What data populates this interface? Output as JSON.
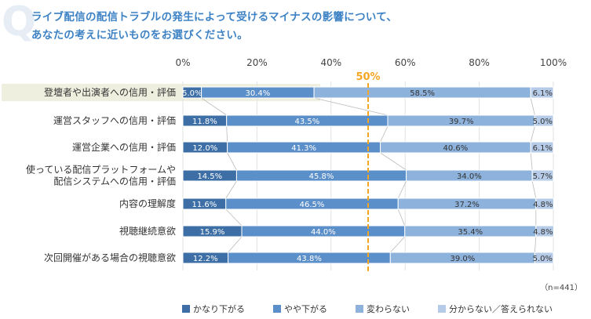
{
  "header": {
    "q_mark": "Q",
    "title_line1": "ライブ配信の配信トラブルの発生によって受けるマイナスの影響について、",
    "title_line2": "あなたの考えに近いものをお選びください。"
  },
  "colors": {
    "series": [
      "#3d6fa6",
      "#5b8fc9",
      "#8db2dc",
      "#b5cbe8"
    ],
    "highlight_row": "#efefdf",
    "reference_line": "#f5a623"
  },
  "chart_data": {
    "type": "bar",
    "orientation": "horizontal",
    "stacked": true,
    "categories": [
      "登壇者や出演者への信用・評価",
      "運営スタッフへの信用・評価",
      "運営企業への信用・評価",
      "使っている配信プラットフォームや\n配信システムへの信用・評価",
      "内容の理解度",
      "視聴継続意欲",
      "次回開催がある場合の視聴意欲"
    ],
    "series": [
      {
        "name": "かなり下がる",
        "values": [
          5.0,
          11.8,
          12.0,
          14.5,
          11.6,
          15.9,
          12.2
        ]
      },
      {
        "name": "やや下がる",
        "values": [
          30.4,
          43.5,
          41.3,
          45.8,
          46.5,
          44.0,
          43.8
        ]
      },
      {
        "name": "変わらない",
        "values": [
          58.5,
          39.7,
          40.6,
          34.0,
          37.2,
          35.4,
          39.0
        ]
      },
      {
        "name": "分からない／答えられない",
        "values": [
          6.1,
          5.0,
          6.1,
          5.7,
          4.8,
          4.8,
          5.0
        ]
      }
    ],
    "xlim": [
      0,
      100
    ],
    "x_ticks": [
      "0%",
      "20%",
      "40%",
      "60%",
      "80%",
      "100%"
    ],
    "reference_line": {
      "value": 50,
      "label": "50%"
    },
    "note": "（n=441）",
    "legend_position": "bottom",
    "highlighted_category": 0
  }
}
